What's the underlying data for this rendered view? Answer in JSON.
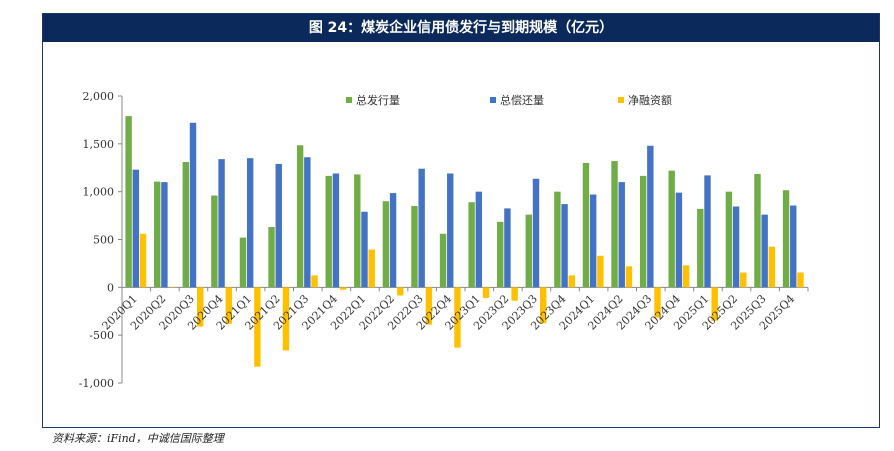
{
  "header": {
    "title": "图 24：煤炭企业信用债发行与到期规模（亿元）"
  },
  "footer": {
    "source": "资料来源：iFind，中诚信国际整理"
  },
  "chart_data": {
    "type": "bar",
    "title": "图 24：煤炭企业信用债发行与到期规模（亿元）",
    "xlabel": "",
    "ylabel": "",
    "ylim": [
      -1000,
      2000
    ],
    "yticks": [
      2000,
      1500,
      1000,
      500,
      0,
      -500,
      -1000
    ],
    "ytick_labels": [
      "2,000",
      "1,500",
      "1,000",
      "500",
      "0",
      "-500",
      "-1,000"
    ],
    "legend_position": "top",
    "categories": [
      "2020Q1",
      "2020Q2",
      "2020Q3",
      "2020Q4",
      "2021Q1",
      "2021Q2",
      "2021Q3",
      "2021Q4",
      "2022Q1",
      "2022Q2",
      "2022Q3",
      "2022Q4",
      "2023Q1",
      "2023Q2",
      "2023Q3",
      "2023Q4",
      "2024Q1",
      "2024Q2",
      "2024Q3",
      "2024Q4",
      "2025Q1",
      "2025Q2",
      "2025Q3",
      "2025Q4"
    ],
    "series": [
      {
        "name": "总发行量",
        "color": "#70ad47",
        "values": [
          1790,
          1105,
          1310,
          960,
          520,
          630,
          1485,
          1165,
          1180,
          900,
          850,
          560,
          890,
          685,
          760,
          1000,
          1300,
          1320,
          1165,
          1220,
          820,
          1000,
          1185,
          1015
        ]
      },
      {
        "name": "总偿还量",
        "color": "#4472c4",
        "values": [
          1230,
          1100,
          1720,
          1340,
          1350,
          1290,
          1360,
          1190,
          790,
          985,
          1240,
          1190,
          1000,
          825,
          1135,
          870,
          970,
          1100,
          1480,
          990,
          1170,
          845,
          760,
          855
        ]
      },
      {
        "name": "净融资额",
        "color": "#ffc000",
        "values": [
          560,
          5,
          -410,
          -380,
          -830,
          -660,
          125,
          -25,
          395,
          -85,
          -390,
          -630,
          -110,
          -140,
          -375,
          125,
          330,
          220,
          -315,
          230,
          -350,
          155,
          425,
          155
        ]
      }
    ]
  }
}
